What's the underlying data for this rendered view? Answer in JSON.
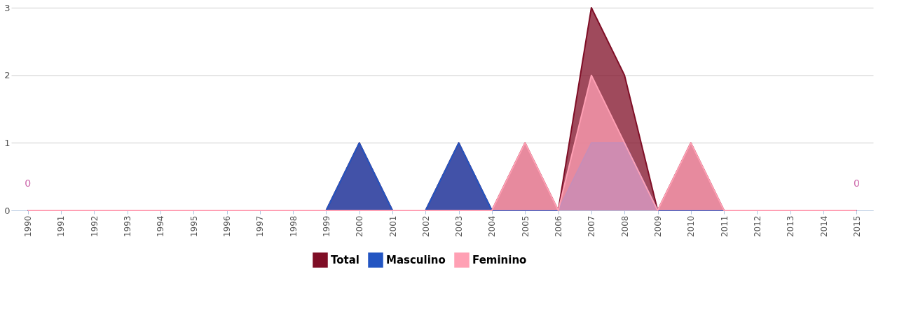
{
  "chart_data": {
    "type": "area",
    "categories": [
      "1990",
      "1991",
      "1992",
      "1993",
      "1994",
      "1995",
      "1996",
      "1997",
      "1998",
      "1999",
      "2000",
      "2001",
      "2002",
      "2003",
      "2004",
      "2005",
      "2006",
      "2007",
      "2008",
      "2009",
      "2010",
      "2011",
      "2012",
      "2013",
      "2014",
      "2015"
    ],
    "series": [
      {
        "name": "Total",
        "color": "#7f0e26",
        "values": [
          0,
          0,
          0,
          0,
          0,
          0,
          0,
          0,
          0,
          0,
          1,
          0,
          0,
          1,
          0,
          1,
          0,
          3,
          2,
          0,
          1,
          0,
          0,
          0,
          0,
          0
        ]
      },
      {
        "name": "Masculino",
        "color": "#2355c2",
        "values": [
          0,
          0,
          0,
          0,
          0,
          0,
          0,
          0,
          0,
          0,
          1,
          0,
          0,
          1,
          0,
          0,
          0,
          1,
          1,
          0,
          0,
          0,
          0,
          0,
          0,
          0
        ]
      },
      {
        "name": "Feminino",
        "color": "#ffa0b4",
        "values": [
          0,
          0,
          0,
          0,
          0,
          0,
          0,
          0,
          0,
          0,
          0,
          0,
          0,
          0,
          0,
          1,
          0,
          2,
          1,
          0,
          1,
          0,
          0,
          0,
          0,
          0
        ]
      }
    ],
    "ylim": [
      0,
      3
    ],
    "yticks": [
      0,
      1,
      2,
      3
    ],
    "grid": "y",
    "legend": "bottom",
    "annotations": [
      {
        "text": "0",
        "x": "1990",
        "y": 0
      },
      {
        "text": "0",
        "x": "2015",
        "y": 0
      }
    ]
  }
}
